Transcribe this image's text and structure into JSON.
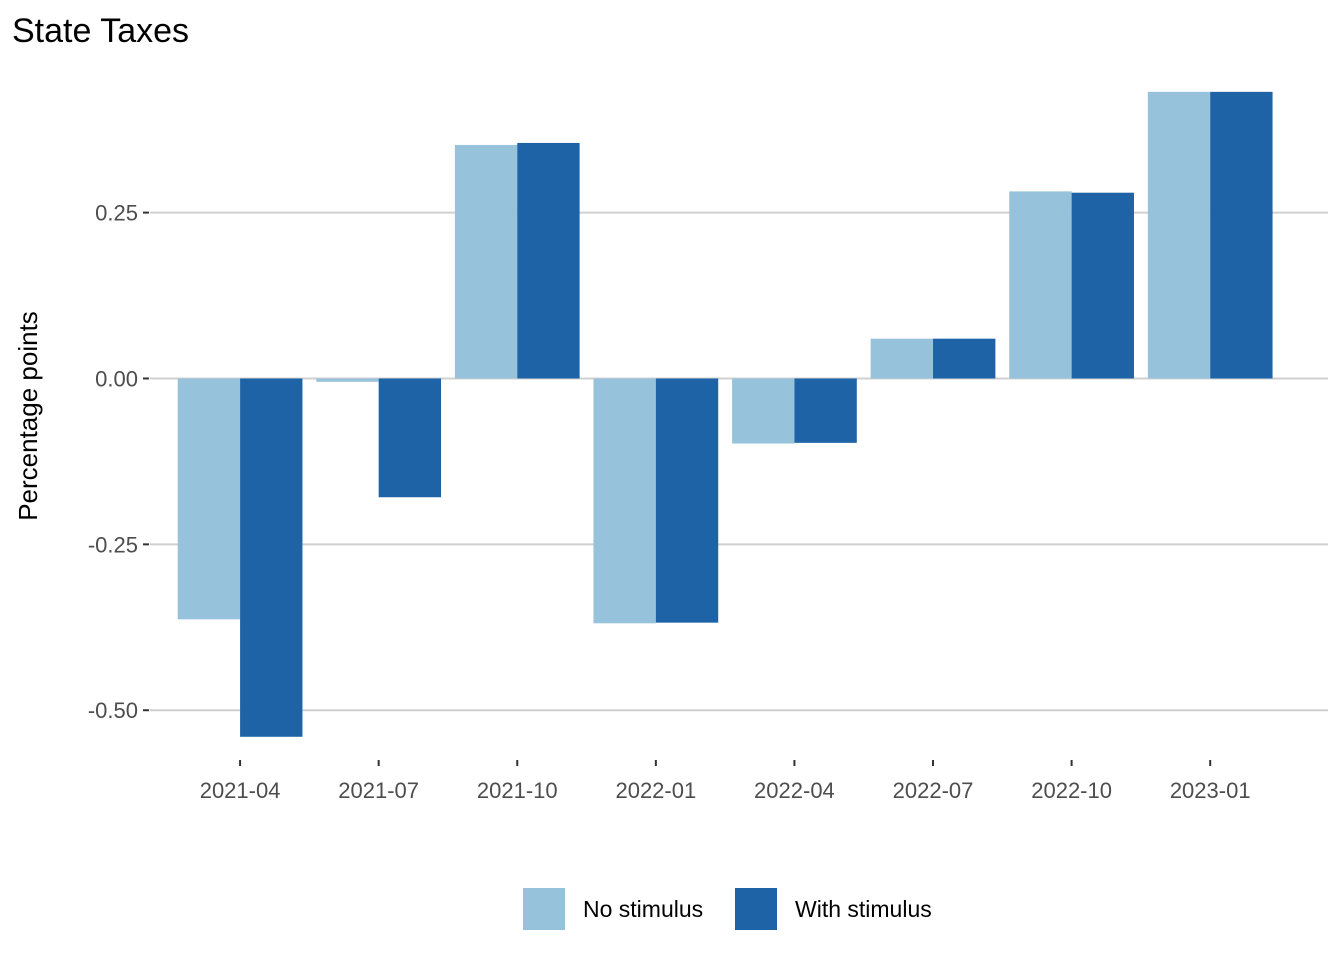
{
  "chart_data": {
    "type": "bar",
    "title": "State Taxes",
    "xlabel": "",
    "ylabel": "Percentage points",
    "categories": [
      "2021-04",
      "2021-07",
      "2021-10",
      "2022-01",
      "2022-04",
      "2022-07",
      "2022-10",
      "2023-01"
    ],
    "series": [
      {
        "name": "No stimulus",
        "color": "#97c2db",
        "values": [
          -0.363,
          -0.005,
          0.352,
          -0.369,
          -0.098,
          0.06,
          0.282,
          0.432
        ]
      },
      {
        "name": "With stimulus",
        "color": "#1e63a6",
        "values": [
          -0.54,
          -0.179,
          0.355,
          -0.368,
          -0.097,
          0.06,
          0.28,
          0.432
        ]
      }
    ],
    "yticks": [
      -0.5,
      -0.25,
      0.0,
      0.25
    ],
    "ytick_labels": [
      "-0.50",
      "-0.25",
      "0.00",
      "0.25"
    ],
    "ylim": [
      -0.575,
      0.48
    ],
    "grid": "horizontal",
    "legend_position": "bottom"
  }
}
